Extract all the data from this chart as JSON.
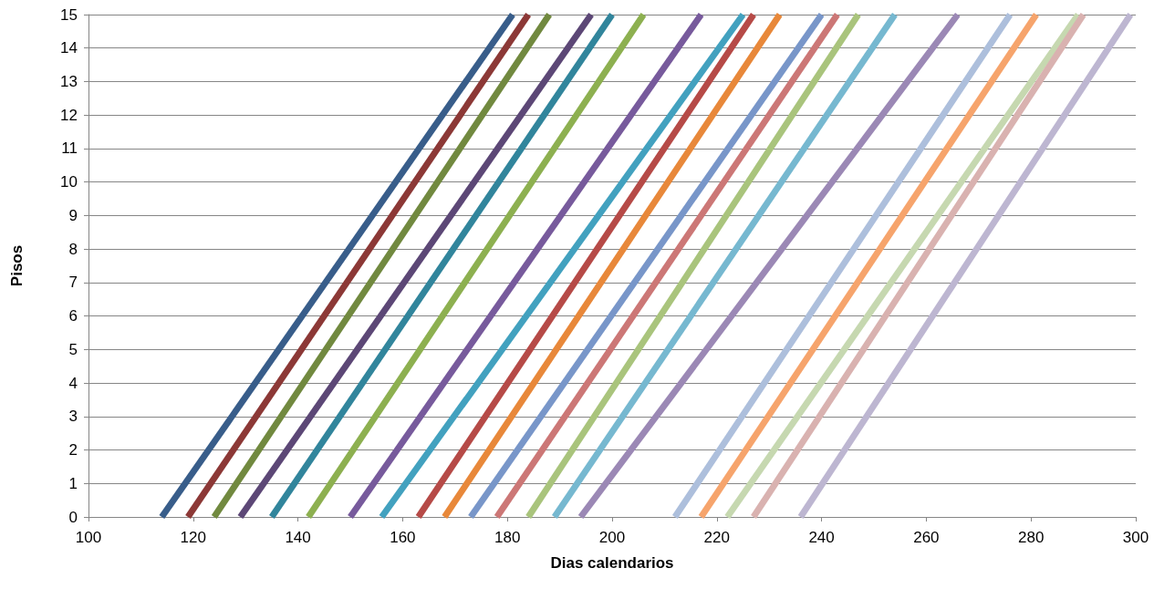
{
  "chart_data": {
    "type": "line",
    "xlabel": "Dias calendarios",
    "ylabel": "Pisos",
    "xlim": [
      100,
      300
    ],
    "xticks": [
      100,
      120,
      140,
      160,
      180,
      200,
      220,
      240,
      260,
      280,
      300
    ],
    "ylim": [
      0,
      15
    ],
    "yticks": [
      0,
      1,
      2,
      3,
      4,
      5,
      6,
      7,
      8,
      9,
      10,
      11,
      12,
      13,
      14,
      15
    ],
    "grid": "y",
    "marker": "none",
    "line_style": "solid",
    "series": [
      {
        "color": "#385d8a",
        "x": [
          114,
          181
        ],
        "values": [
          0,
          15
        ]
      },
      {
        "color": "#8c3836",
        "x": [
          119,
          184
        ],
        "values": [
          0,
          15
        ]
      },
      {
        "color": "#71893f",
        "x": [
          124,
          188
        ],
        "values": [
          0,
          15
        ]
      },
      {
        "color": "#5c4776",
        "x": [
          129,
          196
        ],
        "values": [
          0,
          15
        ]
      },
      {
        "color": "#31859c",
        "x": [
          135,
          200
        ],
        "values": [
          0,
          15
        ]
      },
      {
        "color": "#8db050",
        "x": [
          142,
          206
        ],
        "values": [
          0,
          15
        ]
      },
      {
        "color": "#775a9c",
        "x": [
          150,
          217
        ],
        "values": [
          0,
          15
        ]
      },
      {
        "color": "#42a1bf",
        "x": [
          156,
          225
        ],
        "values": [
          0,
          15
        ]
      },
      {
        "color": "#b64a47",
        "x": [
          163,
          227
        ],
        "values": [
          0,
          15
        ]
      },
      {
        "color": "#e8883a",
        "x": [
          168,
          232
        ],
        "values": [
          0,
          15
        ]
      },
      {
        "color": "#7896c9",
        "x": [
          173,
          240
        ],
        "values": [
          0,
          15
        ]
      },
      {
        "color": "#cc7776",
        "x": [
          178,
          243
        ],
        "values": [
          0,
          15
        ]
      },
      {
        "color": "#a9c47c",
        "x": [
          184,
          247
        ],
        "values": [
          0,
          15
        ]
      },
      {
        "color": "#76b8d0",
        "x": [
          189,
          254
        ],
        "values": [
          0,
          15
        ]
      },
      {
        "color": "#9b88b5",
        "x": [
          194,
          266
        ],
        "values": [
          0,
          15
        ]
      },
      {
        "color": "#adbfdc",
        "x": [
          212,
          276
        ],
        "values": [
          0,
          15
        ]
      },
      {
        "color": "#f6a46c",
        "x": [
          217,
          281
        ],
        "values": [
          0,
          15
        ]
      },
      {
        "color": "#c6d8b0",
        "x": [
          222,
          289
        ],
        "values": [
          0,
          15
        ]
      },
      {
        "color": "#d9b2b0",
        "x": [
          227,
          290
        ],
        "values": [
          0,
          15
        ]
      },
      {
        "color": "#bdb6d1",
        "x": [
          236,
          299
        ],
        "values": [
          0,
          15
        ]
      }
    ]
  }
}
